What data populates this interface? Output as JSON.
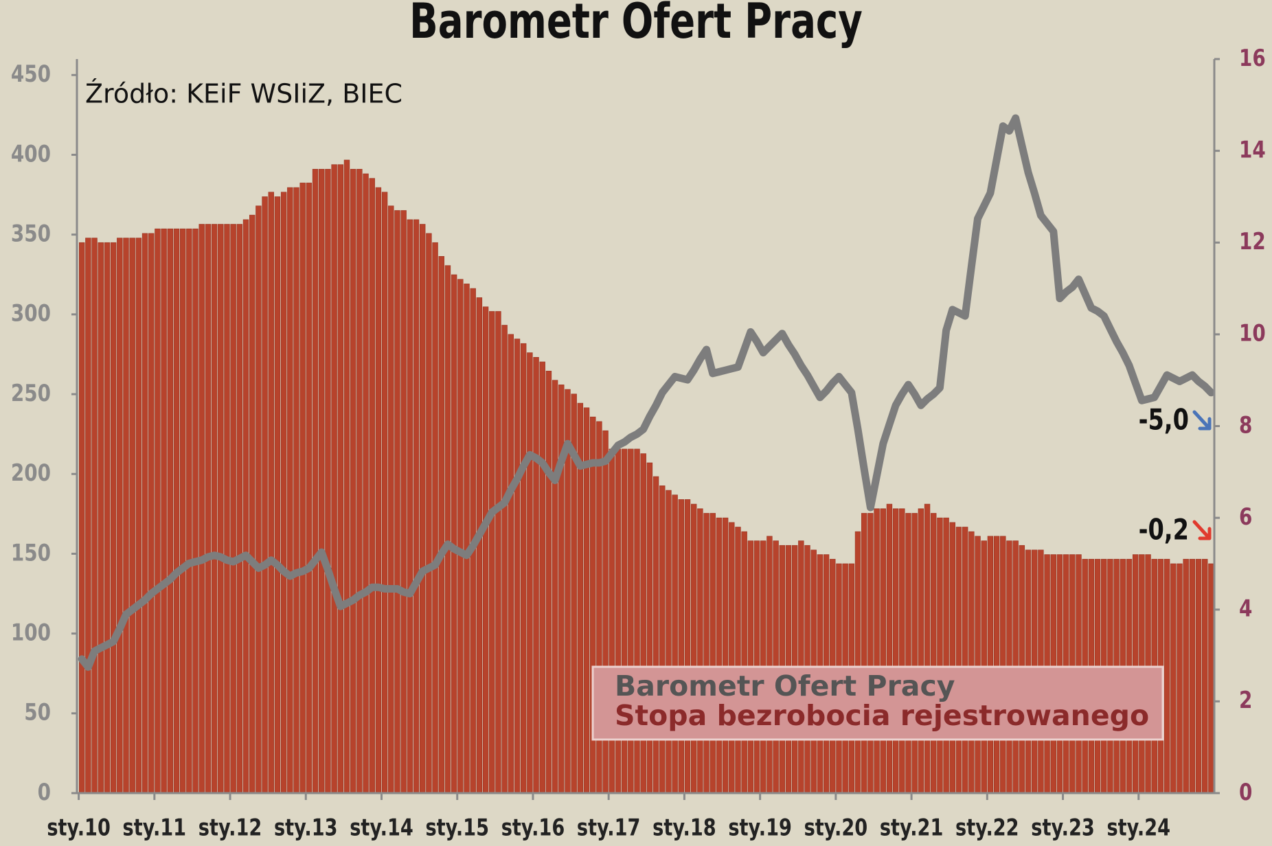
{
  "chart_data": {
    "type": "combo",
    "title": "Barometr Ofert Pracy",
    "source": "Źródło: KEiF WSIiZ, BIEC",
    "categories": [
      "sty.10",
      null,
      null,
      null,
      null,
      null,
      null,
      null,
      null,
      null,
      null,
      null,
      "sty.11",
      null,
      null,
      null,
      null,
      null,
      null,
      null,
      null,
      null,
      null,
      null,
      "sty.12",
      null,
      null,
      null,
      null,
      null,
      null,
      null,
      null,
      null,
      null,
      null,
      "sty.13",
      null,
      null,
      null,
      null,
      null,
      null,
      null,
      null,
      null,
      null,
      null,
      "sty.14",
      null,
      null,
      null,
      null,
      null,
      null,
      null,
      null,
      null,
      null,
      null,
      "sty.15",
      null,
      null,
      null,
      null,
      null,
      null,
      null,
      null,
      null,
      null,
      null,
      "sty.16",
      null,
      null,
      null,
      null,
      null,
      null,
      null,
      null,
      null,
      null,
      null,
      "sty.17",
      null,
      null,
      null,
      null,
      null,
      null,
      null,
      null,
      null,
      null,
      null,
      "sty.18",
      null,
      null,
      null,
      null,
      null,
      null,
      null,
      null,
      null,
      null,
      null,
      "sty.19",
      null,
      null,
      null,
      null,
      null,
      null,
      null,
      null,
      null,
      null,
      null,
      "sty.20",
      null,
      null,
      null,
      null,
      null,
      null,
      null,
      null,
      null,
      null,
      null,
      "sty.21",
      null,
      null,
      null,
      null,
      null,
      null,
      null,
      null,
      null,
      null,
      null,
      "sty.22",
      null,
      null,
      null,
      null,
      null,
      null,
      null,
      null,
      null,
      null,
      null,
      "sty.23",
      null,
      null,
      null,
      null,
      null,
      null,
      null,
      null,
      null,
      null,
      null,
      "sty.24",
      null,
      null,
      null,
      null,
      null,
      null,
      null,
      null,
      null,
      null,
      null
    ],
    "series": [
      {
        "name": "Barometr Ofert Pracy",
        "type": "line",
        "axis": "y",
        "color": "#7d7d7d",
        "values": [
          84,
          79,
          89,
          91,
          93,
          95,
          103,
          112,
          115,
          118,
          121,
          125,
          128,
          131,
          134,
          138,
          141,
          144,
          145,
          146,
          148,
          149,
          148,
          146,
          145,
          147,
          149,
          145,
          141,
          143,
          146,
          143,
          139,
          136,
          138,
          139,
          141,
          146,
          151,
          140,
          128,
          117,
          119,
          121,
          124,
          126,
          129,
          129,
          128,
          128,
          128,
          126,
          125,
          132,
          139,
          141,
          143,
          150,
          156,
          153,
          151,
          149,
          155,
          162,
          169,
          176,
          179,
          182,
          190,
          197,
          205,
          212,
          210,
          207,
          201,
          196,
          208,
          219,
          212,
          205,
          206,
          207,
          207,
          208,
          213,
          218,
          220,
          223,
          225,
          228,
          236,
          243,
          251,
          256,
          261,
          260,
          259,
          265,
          272,
          278,
          263,
          264,
          265,
          266,
          267,
          278,
          289,
          283,
          276,
          280,
          284,
          288,
          281,
          275,
          268,
          262,
          255,
          248,
          252,
          257,
          261,
          256,
          251,
          228,
          203,
          179,
          199,
          219,
          231,
          243,
          250,
          256,
          250,
          243,
          247,
          250,
          254,
          290,
          303,
          301,
          299,
          330,
          360,
          368,
          376,
          397,
          418,
          415,
          423,
          406,
          389,
          376,
          362,
          357,
          352,
          310,
          314,
          317,
          322,
          313,
          304,
          302,
          299,
          291,
          283,
          276,
          268,
          257,
          246,
          247,
          248,
          255,
          262,
          260,
          258,
          260,
          262,
          258,
          255,
          251
        ]
      },
      {
        "name": "Stopa bezrobocia rejestrowanego",
        "type": "bar",
        "axis": "y2",
        "color": "#b7432c",
        "values": [
          12.0,
          12.1,
          12.1,
          12.0,
          12.0,
          12.0,
          12.1,
          12.1,
          12.1,
          12.1,
          12.2,
          12.2,
          12.3,
          12.3,
          12.3,
          12.3,
          12.3,
          12.3,
          12.3,
          12.4,
          12.4,
          12.4,
          12.4,
          12.4,
          12.4,
          12.4,
          12.5,
          12.6,
          12.8,
          13.0,
          13.1,
          13.0,
          13.1,
          13.2,
          13.2,
          13.3,
          13.3,
          13.6,
          13.6,
          13.6,
          13.7,
          13.7,
          13.8,
          13.6,
          13.6,
          13.5,
          13.4,
          13.2,
          13.1,
          12.8,
          12.7,
          12.7,
          12.5,
          12.5,
          12.4,
          12.2,
          12.0,
          11.7,
          11.5,
          11.3,
          11.2,
          11.1,
          11.0,
          10.8,
          10.6,
          10.5,
          10.5,
          10.2,
          10.0,
          9.9,
          9.8,
          9.6,
          9.5,
          9.4,
          9.2,
          9.0,
          8.9,
          8.8,
          8.7,
          8.5,
          8.4,
          8.2,
          8.1,
          7.9,
          7.5,
          7.5,
          7.5,
          7.5,
          7.5,
          7.4,
          7.2,
          6.9,
          6.7,
          6.6,
          6.5,
          6.4,
          6.4,
          6.3,
          6.2,
          6.1,
          6.1,
          6.0,
          6.0,
          5.9,
          5.8,
          5.7,
          5.5,
          5.5,
          5.5,
          5.6,
          5.5,
          5.4,
          5.4,
          5.4,
          5.5,
          5.4,
          5.3,
          5.2,
          5.2,
          5.1,
          5.0,
          5.0,
          5.0,
          5.7,
          6.1,
          6.1,
          6.2,
          6.2,
          6.3,
          6.2,
          6.2,
          6.1,
          6.1,
          6.2,
          6.3,
          6.1,
          6.0,
          6.0,
          5.9,
          5.8,
          5.8,
          5.7,
          5.6,
          5.5,
          5.6,
          5.6,
          5.6,
          5.5,
          5.5,
          5.4,
          5.3,
          5.3,
          5.3,
          5.2,
          5.2,
          5.2,
          5.2,
          5.2,
          5.2,
          5.1,
          5.1,
          5.1,
          5.1,
          5.1,
          5.1,
          5.1,
          5.1,
          5.2,
          5.2,
          5.2,
          5.1,
          5.1,
          5.1,
          5.0,
          5.0,
          5.1,
          5.1,
          5.1,
          5.1,
          5.0
        ]
      }
    ],
    "annotations": [
      "-5,0",
      "-0,2"
    ],
    "ylim": [
      0,
      460
    ],
    "yticks": [
      0,
      50,
      100,
      150,
      200,
      250,
      300,
      350,
      400,
      450
    ],
    "y2lim": [
      0,
      16
    ],
    "y2ticks": [
      0,
      2,
      4,
      6,
      8,
      10,
      12,
      14,
      16
    ],
    "grid": false
  }
}
